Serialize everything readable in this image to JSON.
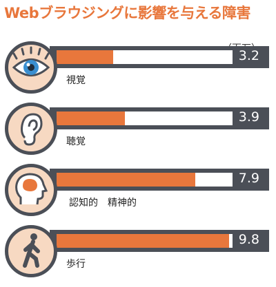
{
  "title": "Webブラウジングに影響を与える障害",
  "colors": {
    "accent": "#e8773c",
    "dark": "#4b4f57",
    "icon_bg": "#f7d9c2",
    "eye_blue": "#3a8fd0"
  },
  "chart_data": {
    "type": "bar",
    "orientation": "horizontal",
    "unit_label": "（百万）",
    "categories": [
      "視覚",
      "聴覚",
      "認知的　精神的",
      "歩行"
    ],
    "values": [
      3.2,
      3.9,
      7.9,
      9.8
    ],
    "value_labels": [
      "3.2",
      "3.9",
      "7.9",
      "9.8"
    ],
    "xlim": [
      0,
      10
    ],
    "grid": false,
    "legend": "none",
    "icons": [
      "eye-icon",
      "ear-icon",
      "head-brain-icon",
      "walking-person-icon"
    ]
  }
}
